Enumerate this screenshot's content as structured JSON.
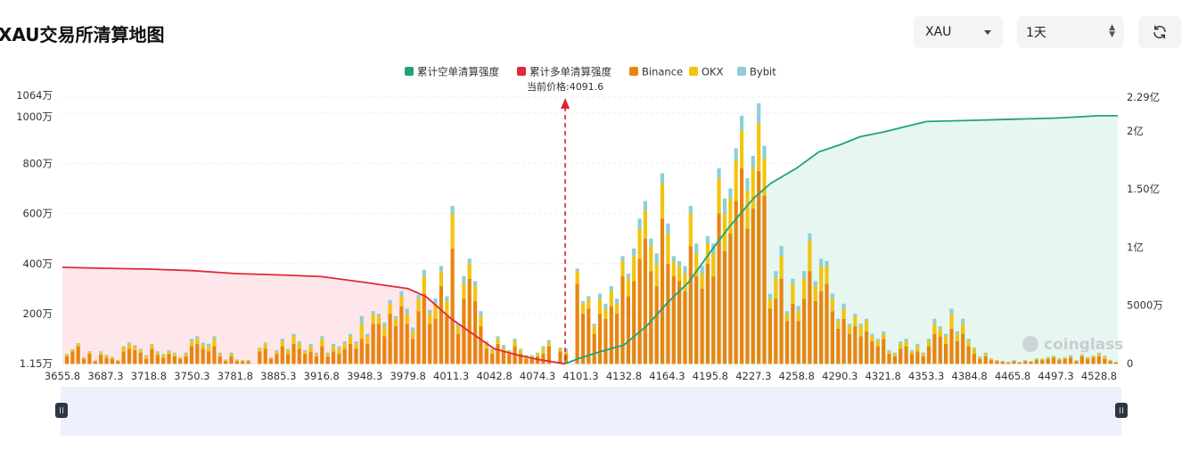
{
  "page_title": "XAU交易所清算地图",
  "controls": {
    "symbol_value": "XAU",
    "range_value": "1天"
  },
  "icons": {
    "symbol_caret": "chevron-down-icon",
    "range_spinner": "updown-icon",
    "refresh": "refresh-icon"
  },
  "colors": {
    "binance": "#e8850f",
    "okx": "#f2c40f",
    "bybit": "#8ccfd6",
    "short_cum": "#1fa37a",
    "long_cum": "#e0293b",
    "short_fill": "#e7f6f0",
    "long_fill": "#fde7ea"
  },
  "watermark": "coinglass",
  "chart_data": {
    "type": "bar",
    "legend": [
      "累计空单清算强度",
      "累计多单清算强度",
      "Binance",
      "OKX",
      "Bybit"
    ],
    "legend_position": "top-center",
    "current_price_label": "当前价格:4091.6",
    "current_price": 4091.6,
    "x_tick_labels": [
      "3655.8",
      "3687.3",
      "3718.8",
      "3750.3",
      "3781.8",
      "3885.3",
      "3916.8",
      "3948.3",
      "3979.8",
      "4011.3",
      "4042.8",
      "4074.3",
      "4101.3",
      "4132.8",
      "4164.3",
      "4195.8",
      "4227.3",
      "4258.8",
      "4290.3",
      "4321.8",
      "4353.3",
      "4384.8",
      "4465.8",
      "4497.3",
      "4528.8"
    ],
    "y_left_ticks": [
      "1.15万",
      "200万",
      "400万",
      "600万",
      "800万",
      "1000万",
      "1064万"
    ],
    "y_left_range": [
      11500,
      10640000
    ],
    "y_right_ticks": [
      "0",
      "5000万",
      "1亿",
      "1.50亿",
      "2亿",
      "2.29亿"
    ],
    "y_right_range": [
      0,
      229000000
    ],
    "grid": true,
    "bar_unit": "万",
    "bars_wan": [
      [
        30,
        8,
        2
      ],
      [
        50,
        6,
        2
      ],
      [
        70,
        10,
        3
      ],
      [
        20,
        5,
        2
      ],
      [
        40,
        8,
        3
      ],
      [
        10,
        3,
        1
      ],
      [
        35,
        10,
        5
      ],
      [
        25,
        8,
        3
      ],
      [
        20,
        6,
        2
      ],
      [
        10,
        4,
        1
      ],
      [
        50,
        15,
        5
      ],
      [
        60,
        20,
        5
      ],
      [
        55,
        15,
        5
      ],
      [
        45,
        10,
        5
      ],
      [
        20,
        10,
        5
      ],
      [
        60,
        15,
        5
      ],
      [
        35,
        10,
        5
      ],
      [
        25,
        10,
        5
      ],
      [
        40,
        10,
        5
      ],
      [
        30,
        10,
        5
      ],
      [
        20,
        5,
        2
      ],
      [
        30,
        10,
        5
      ],
      [
        70,
        20,
        10
      ],
      [
        80,
        20,
        10
      ],
      [
        60,
        15,
        10
      ],
      [
        50,
        20,
        10
      ],
      [
        70,
        30,
        10
      ],
      [
        30,
        10,
        5
      ],
      [
        10,
        5,
        2
      ],
      [
        30,
        10,
        5
      ],
      [
        10,
        5,
        2
      ],
      [
        10,
        3,
        2
      ],
      [
        10,
        4,
        1
      ],
      [
        0,
        0,
        0
      ],
      [
        50,
        10,
        5
      ],
      [
        60,
        20,
        5
      ],
      [
        20,
        5,
        2
      ],
      [
        40,
        10,
        5
      ],
      [
        70,
        20,
        10
      ],
      [
        40,
        15,
        5
      ],
      [
        80,
        30,
        10
      ],
      [
        60,
        20,
        10
      ],
      [
        40,
        10,
        5
      ],
      [
        50,
        20,
        10
      ],
      [
        30,
        10,
        5
      ],
      [
        70,
        30,
        10
      ],
      [
        30,
        10,
        5
      ],
      [
        50,
        20,
        10
      ],
      [
        40,
        20,
        10
      ],
      [
        60,
        20,
        10
      ],
      [
        80,
        30,
        10
      ],
      [
        60,
        20,
        10
      ],
      [
        100,
        60,
        30
      ],
      [
        80,
        30,
        10
      ],
      [
        160,
        40,
        10
      ],
      [
        160,
        30,
        10
      ],
      [
        110,
        40,
        15
      ],
      [
        200,
        40,
        15
      ],
      [
        150,
        30,
        10
      ],
      [
        230,
        40,
        20
      ],
      [
        160,
        40,
        20
      ],
      [
        100,
        30,
        15
      ],
      [
        210,
        50,
        15
      ],
      [
        280,
        70,
        25
      ],
      [
        160,
        40,
        15
      ],
      [
        180,
        60,
        20
      ],
      [
        310,
        60,
        20
      ],
      [
        190,
        60,
        20
      ],
      [
        460,
        140,
        30
      ],
      [
        120,
        30,
        10
      ],
      [
        260,
        60,
        30
      ],
      [
        340,
        60,
        20
      ],
      [
        250,
        60,
        20
      ],
      [
        150,
        40,
        20
      ],
      [
        60,
        20,
        10
      ],
      [
        40,
        15,
        5
      ],
      [
        80,
        20,
        10
      ],
      [
        50,
        15,
        10
      ],
      [
        40,
        10,
        5
      ],
      [
        70,
        20,
        10
      ],
      [
        40,
        15,
        5
      ],
      [
        20,
        10,
        5
      ],
      [
        20,
        10,
        5
      ],
      [
        30,
        10,
        5
      ],
      [
        40,
        20,
        10
      ],
      [
        70,
        15,
        10
      ],
      [
        0,
        0,
        0
      ],
      [
        50,
        10,
        5
      ],
      [
        40,
        10,
        10
      ],
      [
        0,
        0,
        0
      ],
      [
        320,
        50,
        10
      ],
      [
        200,
        40,
        10
      ],
      [
        220,
        40,
        10
      ],
      [
        120,
        30,
        10
      ],
      [
        200,
        60,
        20
      ],
      [
        180,
        40,
        20
      ],
      [
        230,
        60,
        20
      ],
      [
        200,
        40,
        20
      ],
      [
        350,
        60,
        20
      ],
      [
        270,
        70,
        20
      ],
      [
        330,
        100,
        30
      ],
      [
        420,
        120,
        40
      ],
      [
        500,
        110,
        40
      ],
      [
        370,
        100,
        30
      ],
      [
        310,
        90,
        40
      ],
      [
        580,
        140,
        40
      ],
      [
        400,
        120,
        40
      ],
      [
        350,
        60,
        20
      ],
      [
        330,
        60,
        20
      ],
      [
        290,
        70,
        30
      ],
      [
        470,
        130,
        30
      ],
      [
        350,
        90,
        40
      ],
      [
        300,
        60,
        30
      ],
      [
        400,
        80,
        30
      ],
      [
        350,
        90,
        40
      ],
      [
        600,
        140,
        40
      ],
      [
        450,
        150,
        60
      ],
      [
        520,
        140,
        40
      ],
      [
        650,
        160,
        50
      ],
      [
        780,
        150,
        60
      ],
      [
        540,
        150,
        50
      ],
      [
        620,
        160,
        50
      ],
      [
        770,
        190,
        80
      ],
      [
        670,
        150,
        50
      ],
      [
        220,
        40,
        20
      ],
      [
        260,
        80,
        30
      ],
      [
        340,
        90,
        40
      ],
      [
        170,
        30,
        10
      ],
      [
        240,
        80,
        20
      ],
      [
        170,
        40,
        20
      ],
      [
        260,
        80,
        30
      ],
      [
        370,
        120,
        30
      ],
      [
        250,
        60,
        20
      ],
      [
        290,
        100,
        30
      ],
      [
        320,
        70,
        20
      ],
      [
        210,
        50,
        20
      ],
      [
        140,
        30,
        10
      ],
      [
        180,
        40,
        20
      ],
      [
        120,
        30,
        10
      ],
      [
        150,
        40,
        10
      ],
      [
        110,
        40,
        10
      ],
      [
        130,
        40,
        10
      ],
      [
        90,
        20,
        10
      ],
      [
        70,
        20,
        10
      ],
      [
        100,
        20,
        10
      ],
      [
        40,
        10,
        5
      ],
      [
        30,
        10,
        5
      ],
      [
        60,
        20,
        10
      ],
      [
        70,
        20,
        10
      ],
      [
        40,
        10,
        5
      ],
      [
        50,
        20,
        10
      ],
      [
        30,
        10,
        5
      ],
      [
        70,
        20,
        10
      ],
      [
        120,
        40,
        20
      ],
      [
        110,
        30,
        10
      ],
      [
        80,
        30,
        10
      ],
      [
        140,
        60,
        20
      ],
      [
        90,
        30,
        10
      ],
      [
        120,
        40,
        20
      ],
      [
        70,
        20,
        10
      ],
      [
        40,
        20,
        5
      ],
      [
        20,
        5,
        5
      ],
      [
        30,
        10,
        5
      ],
      [
        15,
        5,
        2
      ],
      [
        10,
        3,
        2
      ],
      [
        8,
        2,
        2
      ],
      [
        5,
        2,
        1
      ],
      [
        10,
        3,
        2
      ],
      [
        5,
        2,
        1
      ],
      [
        10,
        3,
        2
      ],
      [
        8,
        2,
        1
      ],
      [
        15,
        5,
        2
      ],
      [
        15,
        4,
        2
      ],
      [
        20,
        5,
        3
      ],
      [
        25,
        5,
        2
      ],
      [
        15,
        5,
        3
      ],
      [
        20,
        5,
        2
      ],
      [
        25,
        5,
        5
      ],
      [
        10,
        3,
        2
      ],
      [
        30,
        5,
        3
      ],
      [
        20,
        5,
        3
      ],
      [
        25,
        5,
        3
      ],
      [
        30,
        10,
        5
      ],
      [
        20,
        8,
        4
      ],
      [
        10,
        4,
        2
      ],
      [
        5,
        2,
        1
      ]
    ],
    "long_cum_wan": [
      [
        3655.8,
        385
      ],
      [
        3687.3,
        381
      ],
      [
        3718.8,
        378
      ],
      [
        3750.3,
        372
      ],
      [
        3781.8,
        360
      ],
      [
        3885.3,
        355
      ],
      [
        3916.8,
        348
      ],
      [
        3948.3,
        325
      ],
      [
        3979.8,
        300
      ],
      [
        3993,
        268
      ],
      [
        4011.3,
        180
      ],
      [
        4030,
        108
      ],
      [
        4042.8,
        60
      ],
      [
        4060,
        35
      ],
      [
        4074.3,
        18
      ],
      [
        4091.6,
        0
      ]
    ],
    "short_cum_yi": [
      [
        4091.6,
        0
      ],
      [
        4101.3,
        0.05
      ],
      [
        4115,
        0.1
      ],
      [
        4132.8,
        0.16
      ],
      [
        4150,
        0.33
      ],
      [
        4164.3,
        0.52
      ],
      [
        4180,
        0.7
      ],
      [
        4195.8,
        0.96
      ],
      [
        4210,
        1.18
      ],
      [
        4227.3,
        1.42
      ],
      [
        4240,
        1.55
      ],
      [
        4258.8,
        1.68
      ],
      [
        4275,
        1.82
      ],
      [
        4290.3,
        1.88
      ],
      [
        4305,
        1.95
      ],
      [
        4321.8,
        1.99
      ],
      [
        4353.3,
        2.08
      ],
      [
        4384.8,
        2.09
      ],
      [
        4465.8,
        2.1
      ],
      [
        4497.3,
        2.11
      ],
      [
        4528.8,
        2.13
      ]
    ]
  }
}
